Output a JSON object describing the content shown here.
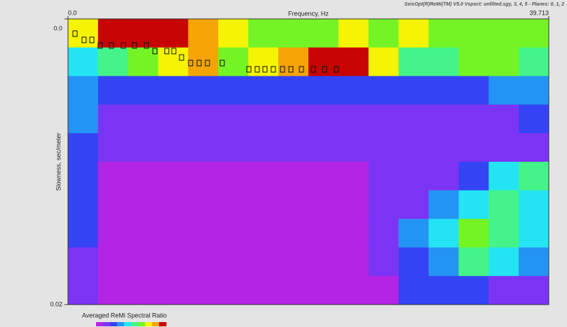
{
  "chart_data": {
    "type": "heatmap",
    "title": "SeisOpt(R)ReMi(TM) V5.0 Vspect: unfilted.sgy, 3, 4, 5 - Planes: 0, 1, 2",
    "xlabel": "Frequency, Hz",
    "ylabel": "Slowness, sec/meter",
    "xlim": [
      0,
      39.713
    ],
    "ylim": [
      0,
      0.02
    ],
    "xticks": [
      {
        "value": 0,
        "label": "0.0"
      },
      39.713
    ],
    "yticks": [
      {
        "value": 0,
        "label": "0.0"
      },
      0.02
    ],
    "colors": [
      "#b424e4",
      "#7c34f4",
      "#3444f4",
      "#2494f4",
      "#24e4f4",
      "#44f488",
      "#74f424",
      "#f4f404",
      "#f4a404",
      "#c80404"
    ],
    "z": [
      [
        7,
        9,
        9,
        9,
        8,
        7,
        6,
        6,
        6,
        7,
        6,
        7,
        6,
        6,
        6,
        6
      ],
      [
        4,
        5,
        6,
        7,
        8,
        6,
        7,
        8,
        9,
        9,
        7,
        5,
        5,
        6,
        6,
        5
      ],
      [
        3,
        2,
        2,
        2,
        2,
        2,
        2,
        2,
        2,
        2,
        2,
        2,
        2,
        2,
        3,
        3
      ],
      [
        3,
        1,
        1,
        1,
        1,
        1,
        1,
        1,
        1,
        1,
        1,
        1,
        1,
        1,
        1,
        2
      ],
      [
        2,
        1,
        1,
        1,
        1,
        1,
        1,
        1,
        1,
        1,
        1,
        1,
        1,
        1,
        1,
        1
      ],
      [
        2,
        0,
        0,
        0,
        0,
        0,
        0,
        0,
        0,
        0,
        1,
        1,
        1,
        2,
        4,
        5
      ],
      [
        2,
        0,
        0,
        0,
        0,
        0,
        0,
        0,
        0,
        0,
        1,
        1,
        3,
        4,
        5,
        4
      ],
      [
        2,
        0,
        0,
        0,
        0,
        0,
        0,
        0,
        0,
        0,
        1,
        3,
        4,
        6,
        5,
        4
      ],
      [
        1,
        0,
        0,
        0,
        0,
        0,
        0,
        0,
        0,
        0,
        1,
        2,
        3,
        5,
        4,
        3
      ],
      [
        1,
        0,
        0,
        0,
        0,
        0,
        0,
        0,
        0,
        0,
        0,
        2,
        2,
        2,
        1,
        1
      ]
    ],
    "picks": {
      "x": [
        0.58,
        1.33,
        1.97,
        2.66,
        3.59,
        4.57,
        5.5,
        6.48,
        7.18,
        8.16,
        8.74,
        9.38,
        10.13,
        10.83,
        11.52,
        12.74,
        14.94,
        15.63,
        16.27,
        16.96,
        17.72,
        18.41,
        19.28,
        20.26,
        21.19,
        22.17
      ],
      "y": [
        0.00103,
        0.00147,
        0.00147,
        0.00186,
        0.00186,
        0.00186,
        0.00186,
        0.00186,
        0.00225,
        0.00225,
        0.00225,
        0.0027,
        0.00309,
        0.00309,
        0.00309,
        0.00309,
        0.00353,
        0.00353,
        0.00353,
        0.00353,
        0.00353,
        0.00353,
        0.00353,
        0.00353,
        0.00353,
        0.00353
      ]
    },
    "legend_title": "Averaged ReMi Spectral Ratio"
  }
}
